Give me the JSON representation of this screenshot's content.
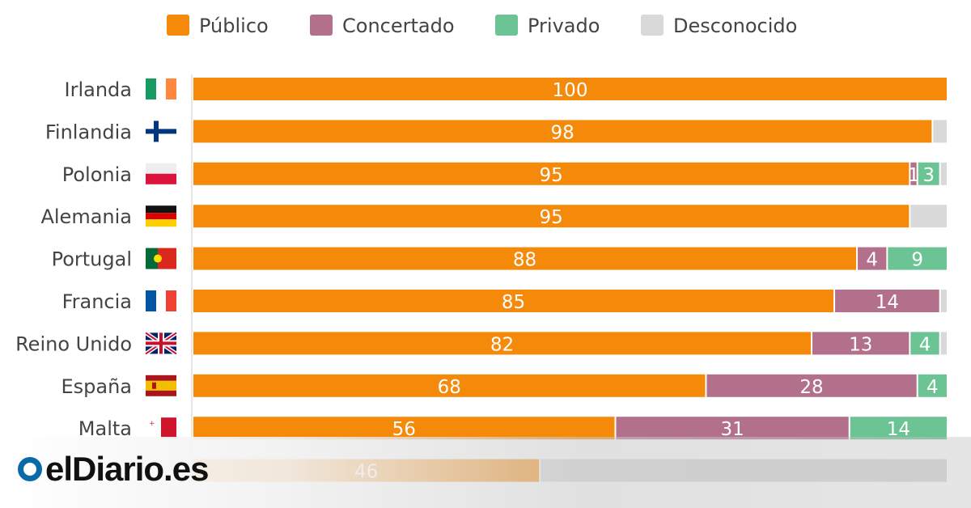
{
  "chart_data": {
    "type": "stacked-bar-horizontal",
    "legend_position": "top",
    "series": [
      {
        "name": "Público",
        "color": "#f58a0a"
      },
      {
        "name": "Concertado",
        "color": "#b3708a"
      },
      {
        "name": "Privado",
        "color": "#6cc494"
      },
      {
        "name": "Desconocido",
        "color": "#d9d9d9"
      }
    ],
    "xlim": [
      0,
      100
    ],
    "rows": [
      {
        "country": "Irlanda",
        "flag": "ireland-flag",
        "values": [
          100,
          0,
          0,
          0
        ],
        "labels": [
          "100",
          "",
          "",
          ""
        ]
      },
      {
        "country": "Finlandia",
        "flag": "finland-flag",
        "values": [
          98,
          0,
          0,
          2
        ],
        "labels": [
          "98",
          "",
          "",
          ""
        ]
      },
      {
        "country": "Polonia",
        "flag": "poland-flag",
        "values": [
          95,
          1,
          3,
          1
        ],
        "labels": [
          "95",
          "1",
          "3",
          ""
        ]
      },
      {
        "country": "Alemania",
        "flag": "germany-flag",
        "values": [
          95,
          0,
          0,
          5
        ],
        "labels": [
          "95",
          "",
          "",
          ""
        ]
      },
      {
        "country": "Portugal",
        "flag": "portugal-flag",
        "values": [
          88,
          4,
          9,
          0
        ],
        "labels": [
          "88",
          "4",
          "9",
          ""
        ]
      },
      {
        "country": "Francia",
        "flag": "france-flag",
        "values": [
          85,
          14,
          0,
          1
        ],
        "labels": [
          "85",
          "14",
          "",
          ""
        ]
      },
      {
        "country": "Reino Unido",
        "flag": "uk-flag",
        "values": [
          82,
          13,
          4,
          1
        ],
        "labels": [
          "82",
          "13",
          "4",
          ""
        ]
      },
      {
        "country": "España",
        "flag": "spain-flag",
        "values": [
          68,
          28,
          4,
          0
        ],
        "labels": [
          "68",
          "28",
          "4",
          ""
        ]
      },
      {
        "country": "Malta",
        "flag": "malta-flag",
        "values": [
          56,
          31,
          14,
          0
        ],
        "labels": [
          "56",
          "31",
          "14",
          ""
        ]
      },
      {
        "country": "",
        "flag": "",
        "values": [
          46,
          0,
          0,
          54
        ],
        "labels": [
          "46",
          "",
          "",
          ""
        ]
      }
    ]
  },
  "branding": {
    "logo_text": "elDiario.es"
  }
}
